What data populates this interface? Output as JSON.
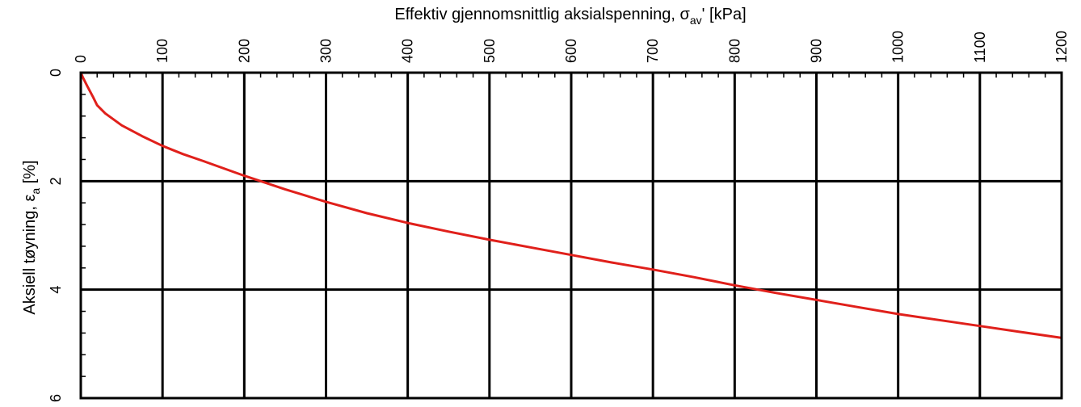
{
  "chart_data": {
    "type": "line",
    "title": "",
    "xlabel": {
      "main": "Effektiv gjennomsnittlig aksialspenning, σ",
      "sub": "av",
      "tail": "'  [kPa]"
    },
    "ylabel": {
      "main": "Aksiell tøyning, ε",
      "sub": "a",
      "tail": "  [%]"
    },
    "x_axis_position": "top",
    "y_axis_inverted": true,
    "xlim": [
      0,
      1200
    ],
    "ylim": [
      0,
      6
    ],
    "x_ticks": [
      "0",
      "100",
      "200",
      "300",
      "400",
      "500",
      "600",
      "700",
      "800",
      "900",
      "1000",
      "1100",
      "1200"
    ],
    "y_ticks": [
      "0",
      "2",
      "4",
      "6"
    ],
    "x_minor_step": 20,
    "y_minor_step": 0.4,
    "grid": true,
    "legend": "none",
    "line_color": "#e0201b",
    "grid_color": "#000000",
    "series": [
      {
        "x": [
          0,
          3,
          8,
          15,
          20,
          30,
          50,
          75,
          100,
          125,
          150,
          200,
          250,
          300,
          350,
          400,
          450,
          500,
          550,
          600,
          650,
          700,
          750,
          800,
          850,
          900,
          950,
          1000,
          1050,
          1100,
          1150,
          1200
        ],
        "y": [
          0,
          0.1,
          0.25,
          0.45,
          0.6,
          0.75,
          0.97,
          1.17,
          1.35,
          1.5,
          1.63,
          1.9,
          2.15,
          2.38,
          2.59,
          2.77,
          2.93,
          3.08,
          3.22,
          3.36,
          3.5,
          3.63,
          3.77,
          3.92,
          4.06,
          4.19,
          4.32,
          4.45,
          4.56,
          4.67,
          4.78,
          4.89
        ]
      }
    ]
  }
}
